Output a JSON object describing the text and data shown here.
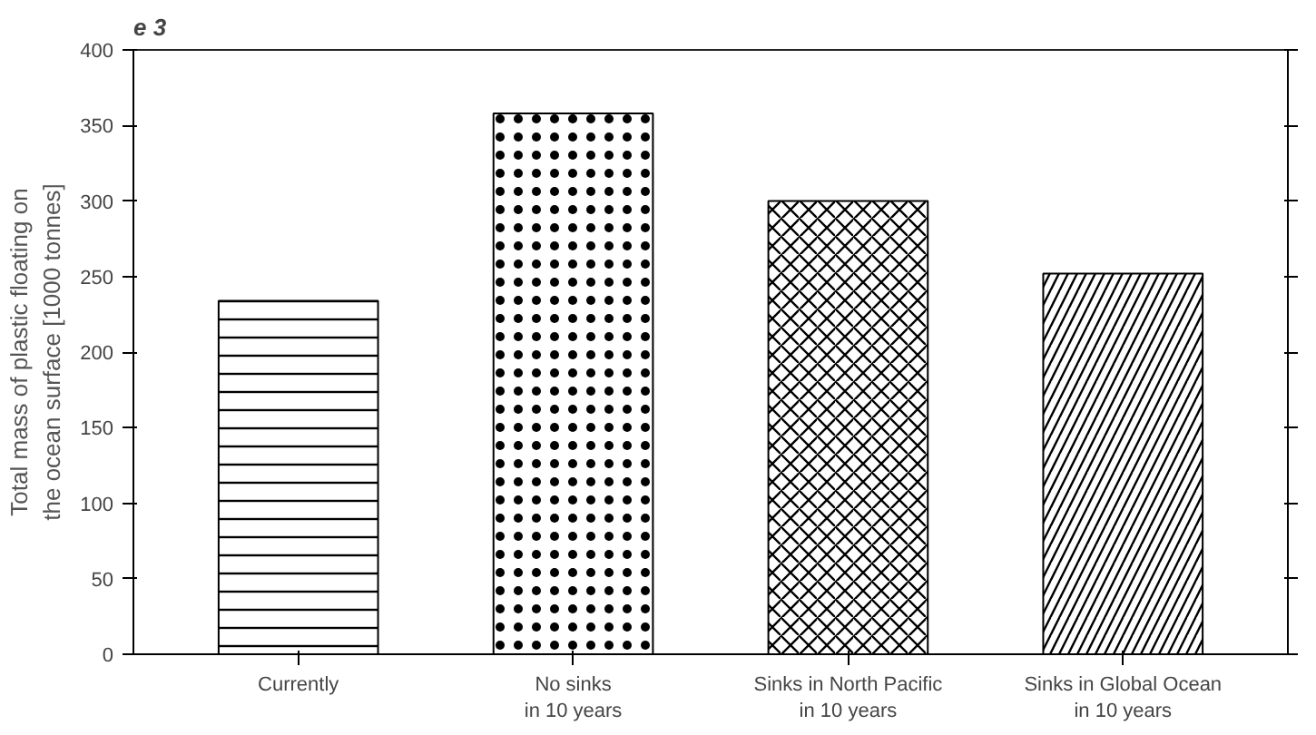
{
  "chart_data": {
    "type": "bar",
    "title": "e 3",
    "categories": [
      "Currently",
      "No sinks\nin 10 years",
      "Sinks in North Pacific\nin 10 years",
      "Sinks in Global Ocean\nin 10 years"
    ],
    "values": [
      234,
      358,
      300,
      252
    ],
    "color": "#000000",
    "ylabel": "Total mass of plastic floating on\nthe ocean surface [1000 tonnes]",
    "ylim": [
      0,
      400
    ],
    "yticks": [
      0,
      50,
      100,
      150,
      200,
      250,
      300,
      350,
      400
    ],
    "grid": false
  }
}
